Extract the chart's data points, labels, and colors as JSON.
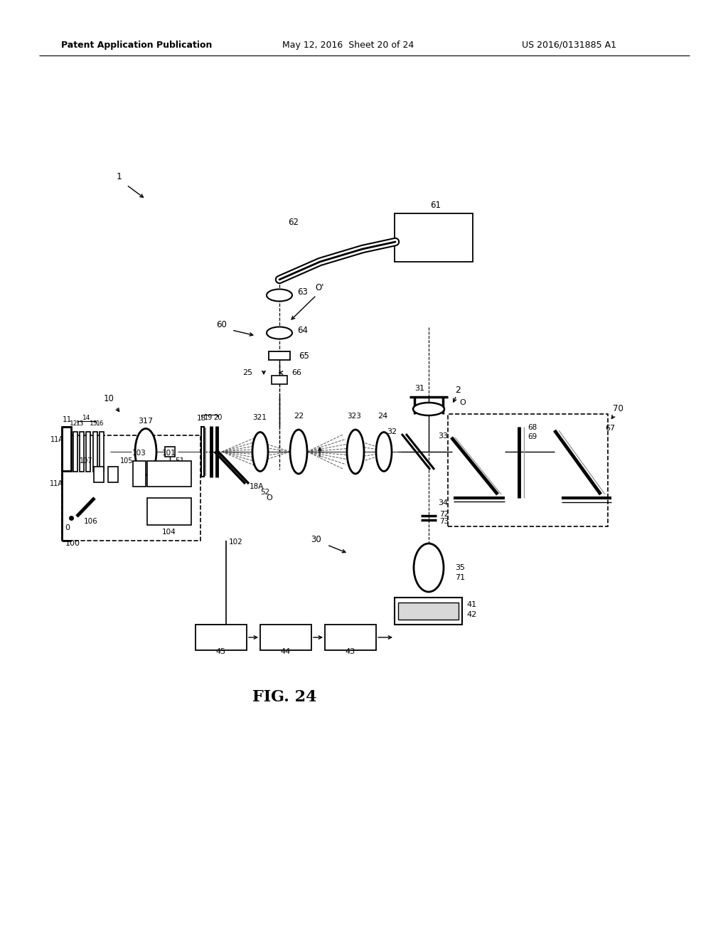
{
  "bg_color": "#ffffff",
  "header_left": "Patent Application Publication",
  "header_mid": "May 12, 2016  Sheet 20 of 24",
  "header_right": "US 2016/0131885 A1",
  "fig_label": "FIG. 24"
}
